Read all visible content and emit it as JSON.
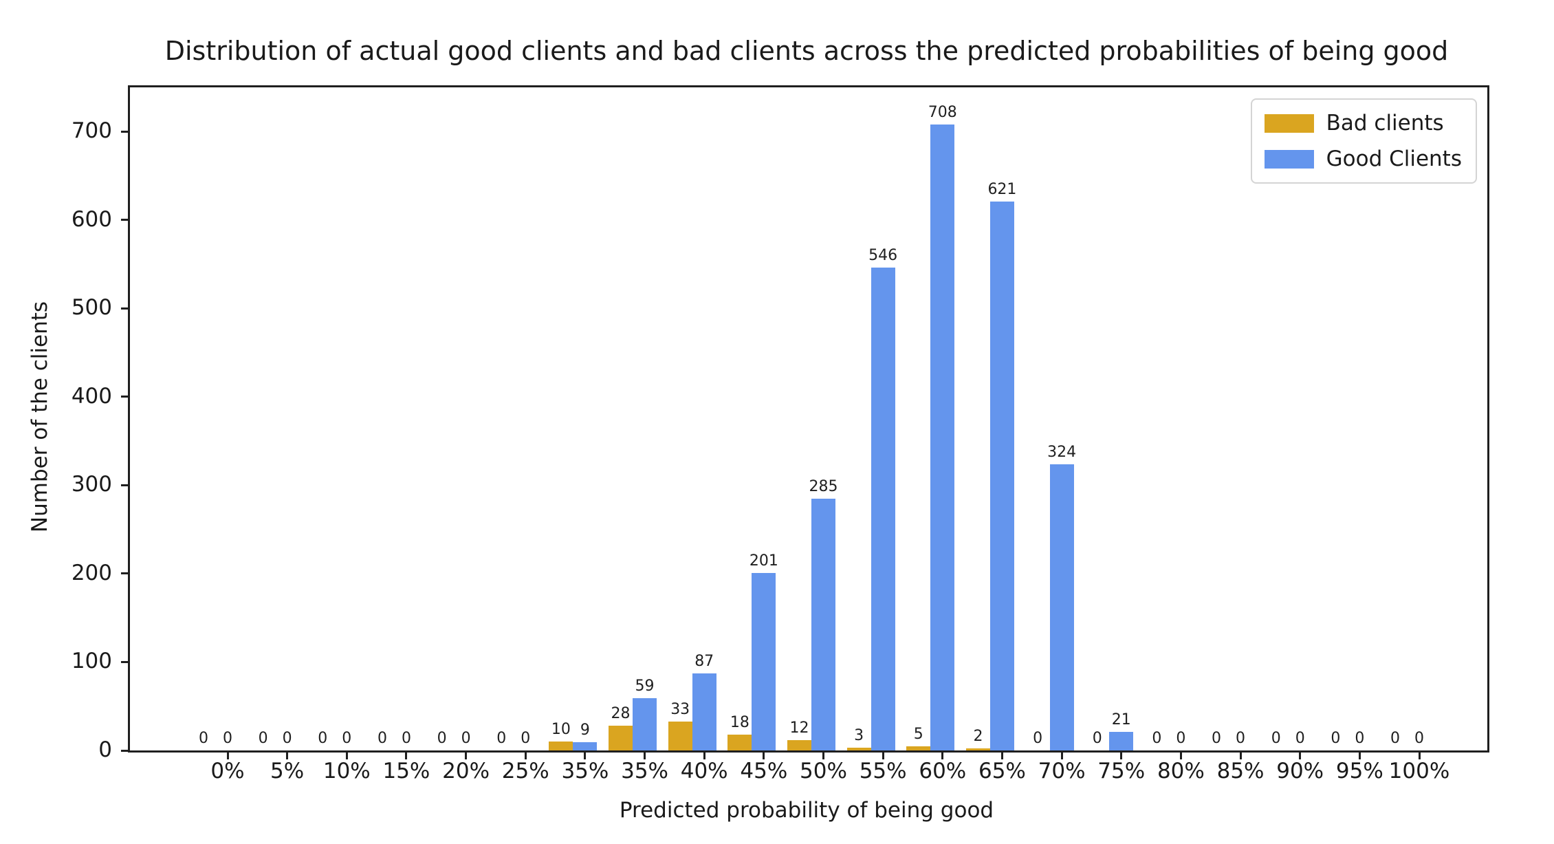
{
  "chart_data": {
    "type": "bar",
    "title": "Distribution of actual good clients and bad clients across the predicted probabilities of being good",
    "xlabel": "Predicted probability of being good",
    "ylabel": "Number of the clients",
    "categories": [
      "0%",
      "5%",
      "10%",
      "15%",
      "20%",
      "25%",
      "35%",
      "35%",
      "40%",
      "45%",
      "50%",
      "55%",
      "60%",
      "65%",
      "70%",
      "75%",
      "80%",
      "85%",
      "90%",
      "95%",
      "100%"
    ],
    "series": [
      {
        "name": "Bad clients",
        "color": "#DAA520",
        "values": [
          0,
          0,
          0,
          0,
          0,
          0,
          10,
          28,
          33,
          18,
          12,
          3,
          5,
          2,
          0,
          0,
          0,
          0,
          0,
          0,
          0
        ]
      },
      {
        "name": "Good Clients",
        "color": "#6495ED",
        "values": [
          0,
          0,
          0,
          0,
          0,
          0,
          9,
          59,
          87,
          201,
          285,
          546,
          708,
          621,
          324,
          21,
          0,
          0,
          0,
          0,
          0
        ]
      }
    ],
    "y_ticks": [
      0,
      100,
      200,
      300,
      400,
      500,
      600,
      700
    ],
    "ylim": [
      0,
      750
    ],
    "bar_value_labels": true,
    "grid": false,
    "legend_position": "upper right",
    "axis_color": "#1f1f1f"
  }
}
